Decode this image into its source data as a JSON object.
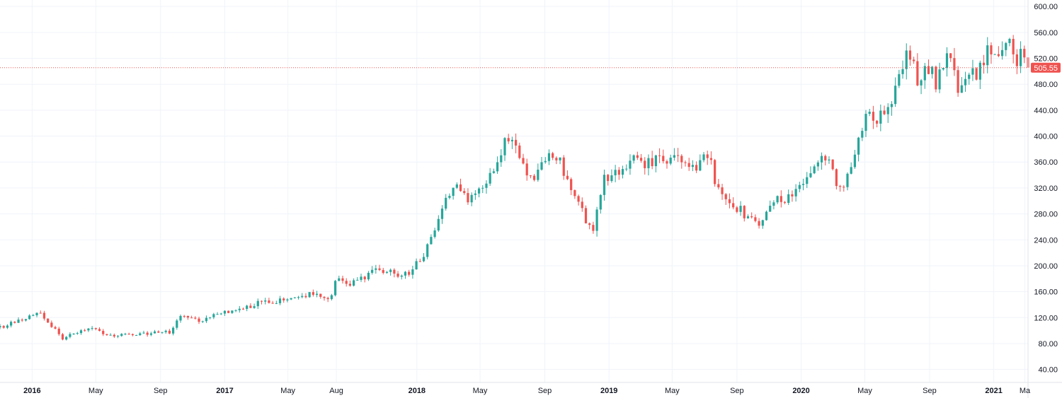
{
  "chart_data": {
    "type": "candlestick",
    "timeframe": "weekly",
    "x_range": [
      "2015-11-01",
      "2021-03-07"
    ],
    "ylim": [
      20,
      610
    ],
    "grid": true,
    "y_ticks": [
      "40.00",
      "80.00",
      "120.00",
      "160.00",
      "200.00",
      "240.00",
      "280.00",
      "320.00",
      "360.00",
      "400.00",
      "440.00",
      "480.00",
      "520.00",
      "560.00",
      "600.00"
    ],
    "x_ticks": [
      {
        "label": "2016",
        "date": "2016-01-01",
        "major": true
      },
      {
        "label": "May",
        "date": "2016-05-01",
        "major": false
      },
      {
        "label": "Sep",
        "date": "2016-09-01",
        "major": false
      },
      {
        "label": "2017",
        "date": "2017-01-01",
        "major": true
      },
      {
        "label": "May",
        "date": "2017-05-01",
        "major": false
      },
      {
        "label": "Aug",
        "date": "2017-08-01",
        "major": false
      },
      {
        "label": "2018",
        "date": "2018-01-01",
        "major": true
      },
      {
        "label": "May",
        "date": "2018-05-01",
        "major": false
      },
      {
        "label": "Sep",
        "date": "2018-09-01",
        "major": false
      },
      {
        "label": "2019",
        "date": "2019-01-01",
        "major": true
      },
      {
        "label": "May",
        "date": "2019-05-01",
        "major": false
      },
      {
        "label": "Sep",
        "date": "2019-09-01",
        "major": false
      },
      {
        "label": "2020",
        "date": "2020-01-01",
        "major": true
      },
      {
        "label": "May",
        "date": "2020-05-01",
        "major": false
      },
      {
        "label": "Sep",
        "date": "2020-09-01",
        "major": false
      },
      {
        "label": "2021",
        "date": "2021-01-01",
        "major": true
      },
      {
        "label": "Ma",
        "date": "2021-03-01",
        "major": false
      }
    ],
    "last_price": "505.55",
    "last_price_value": 505.55,
    "colors": {
      "up": "#26a69a",
      "down": "#ef5350",
      "grid": "#f0f3fa",
      "text": "#131722",
      "price_line": "#ef5350"
    },
    "trend_path": [
      [
        "2015-11-01",
        105
      ],
      [
        "2016-01-15",
        128
      ],
      [
        "2016-02-28",
        88
      ],
      [
        "2016-04-15",
        104
      ],
      [
        "2016-06-01",
        92
      ],
      [
        "2016-07-20",
        94
      ],
      [
        "2016-09-20",
        98
      ],
      [
        "2016-10-10",
        125
      ],
      [
        "2016-11-10",
        115
      ],
      [
        "2017-01-20",
        132
      ],
      [
        "2017-03-10",
        143
      ],
      [
        "2017-05-10",
        148
      ],
      [
        "2017-06-20",
        160
      ],
      [
        "2017-07-20",
        148
      ],
      [
        "2017-08-01",
        188
      ],
      [
        "2017-08-20",
        170
      ],
      [
        "2017-10-15",
        192
      ],
      [
        "2017-12-15",
        186
      ],
      [
        "2018-01-15",
        218
      ],
      [
        "2018-02-10",
        272
      ],
      [
        "2018-03-15",
        330
      ],
      [
        "2018-04-10",
        300
      ],
      [
        "2018-05-20",
        340
      ],
      [
        "2018-06-20",
        400
      ],
      [
        "2018-07-20",
        365
      ],
      [
        "2018-08-10",
        320
      ],
      [
        "2018-08-25",
        360
      ],
      [
        "2018-09-25",
        370
      ],
      [
        "2018-10-20",
        315
      ],
      [
        "2018-11-10",
        285
      ],
      [
        "2018-12-01",
        250
      ],
      [
        "2018-12-20",
        330
      ],
      [
        "2019-02-10",
        362
      ],
      [
        "2019-03-20",
        360
      ],
      [
        "2019-05-01",
        370
      ],
      [
        "2019-06-01",
        345
      ],
      [
        "2019-07-10",
        372
      ],
      [
        "2019-07-25",
        320
      ],
      [
        "2019-08-20",
        300
      ],
      [
        "2019-09-20",
        275
      ],
      [
        "2019-10-10",
        262
      ],
      [
        "2019-11-15",
        300
      ],
      [
        "2019-12-15",
        305
      ],
      [
        "2020-01-10",
        330
      ],
      [
        "2020-02-15",
        372
      ],
      [
        "2020-03-15",
        315
      ],
      [
        "2020-04-10",
        360
      ],
      [
        "2020-05-01",
        430
      ],
      [
        "2020-05-25",
        420
      ],
      [
        "2020-06-20",
        460
      ],
      [
        "2020-07-10",
        490
      ],
      [
        "2020-07-15",
        540
      ],
      [
        "2020-08-10",
        485
      ],
      [
        "2020-09-01",
        505
      ],
      [
        "2020-09-15",
        480
      ],
      [
        "2020-10-05",
        540
      ],
      [
        "2020-10-25",
        480
      ],
      [
        "2020-12-01",
        500
      ],
      [
        "2020-12-25",
        535
      ],
      [
        "2021-01-12",
        510
      ],
      [
        "2021-01-25",
        550
      ],
      [
        "2021-02-10",
        520
      ],
      [
        "2021-02-25",
        525
      ],
      [
        "2021-03-05",
        505.55
      ]
    ]
  }
}
